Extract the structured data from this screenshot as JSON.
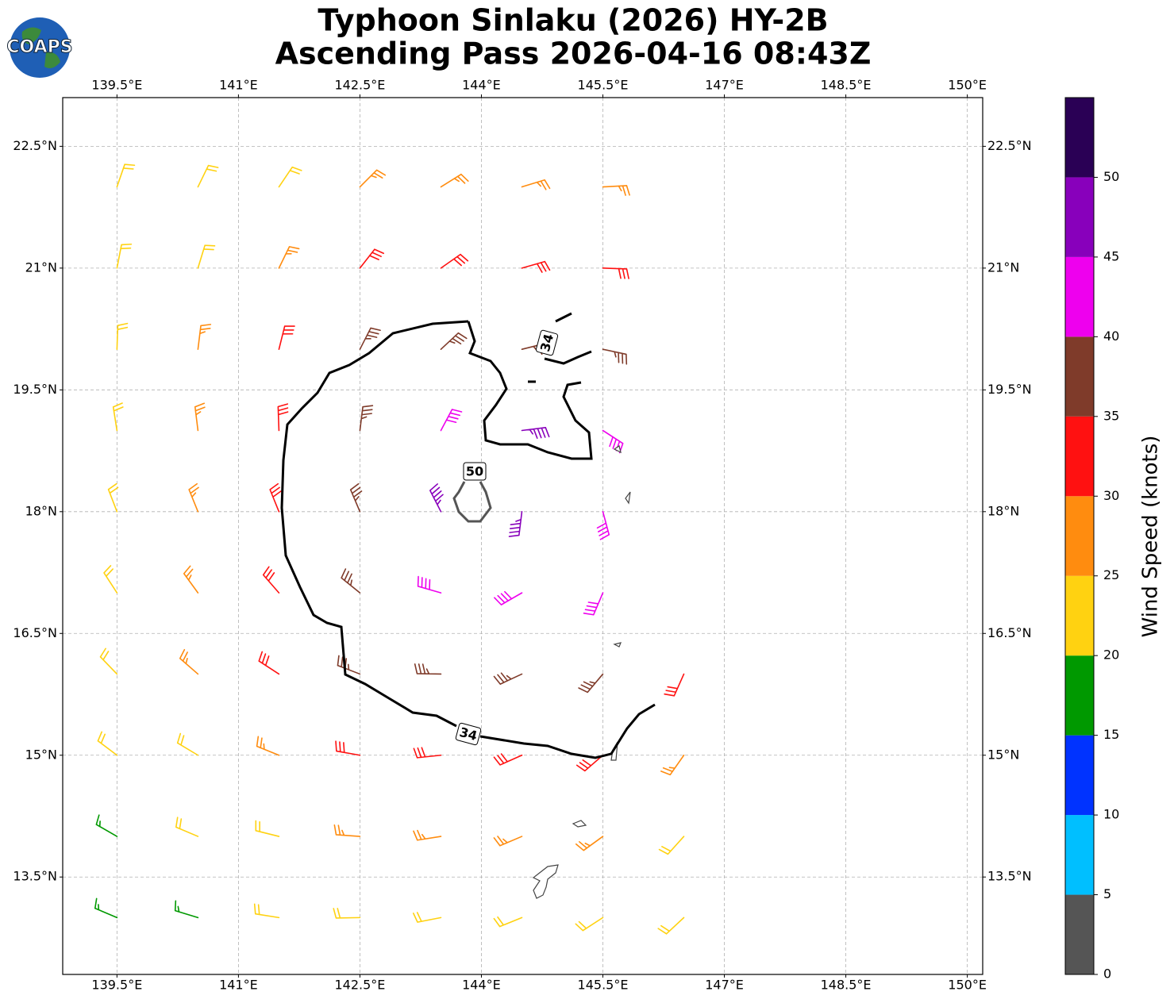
{
  "chart_data": {
    "type": "barbs",
    "title": "Typhoon Sinlaku (2026) HY-2B",
    "subtitle": "Ascending Pass 2026-04-16 08:43Z",
    "logo": "COAPS",
    "xlim": [
      138.83,
      150.19
    ],
    "ylim": [
      12.3,
      23.1
    ],
    "grid": true,
    "xticks": [
      {
        "value": 139.5,
        "label": "139.5°E"
      },
      {
        "value": 141,
        "label": "141°E"
      },
      {
        "value": 142.5,
        "label": "142.5°E"
      },
      {
        "value": 144,
        "label": "144°E"
      },
      {
        "value": 145.5,
        "label": "145.5°E"
      },
      {
        "value": 147,
        "label": "147°E"
      },
      {
        "value": 148.5,
        "label": "148.5°E"
      },
      {
        "value": 150,
        "label": "150°E"
      }
    ],
    "yticks": [
      {
        "value": 13.5,
        "label": "13.5°N"
      },
      {
        "value": 15,
        "label": "15°N"
      },
      {
        "value": 16.5,
        "label": "16.5°N"
      },
      {
        "value": 18,
        "label": "18°N"
      },
      {
        "value": 19.5,
        "label": "19.5°N"
      },
      {
        "value": 21,
        "label": "21°N"
      },
      {
        "value": 22.5,
        "label": "22.5°N"
      }
    ],
    "barbs": {
      "lon": [
        139.5,
        140.5,
        141.5,
        142.5,
        143.5,
        144.5,
        145.5,
        146.5,
        139.5,
        140.5,
        141.5,
        142.5,
        143.5,
        144.5,
        145.5,
        146.5,
        139.5,
        140.5,
        141.5,
        142.5,
        143.5,
        144.5,
        145.5,
        146.5,
        139.5,
        140.5,
        141.5,
        142.5,
        143.5,
        144.5,
        145.5,
        146.5,
        139.5,
        140.5,
        141.5,
        142.5,
        143.5,
        144.5,
        145.5,
        139.5,
        140.5,
        141.5,
        142.5,
        143.5,
        144.5,
        145.5,
        139.5,
        140.5,
        141.5,
        142.5,
        143.5,
        144.5,
        145.5,
        139.5,
        140.5,
        141.5,
        142.5,
        143.5,
        144.5,
        145.5,
        139.5,
        140.5,
        141.5,
        142.5,
        143.5,
        144.5,
        145.5,
        139.5,
        140.5,
        141.5,
        142.5,
        143.5,
        144.5,
        145.5
      ],
      "lat": [
        13,
        13,
        13,
        13,
        13,
        13,
        13,
        13,
        14,
        14,
        14,
        14,
        14,
        14,
        14,
        14,
        15,
        15,
        15,
        15,
        15,
        15,
        15,
        15,
        16,
        16,
        16,
        16,
        16,
        16,
        16,
        16,
        17,
        17,
        17,
        17,
        17,
        17,
        17,
        18,
        18,
        18,
        18,
        18,
        18,
        18,
        19,
        19,
        19,
        19,
        19,
        19,
        19,
        20,
        20,
        20,
        20,
        20,
        20,
        20,
        21,
        21,
        21,
        21,
        21,
        21,
        21,
        22,
        22,
        22,
        22,
        22,
        22,
        22
      ],
      "speed": [
        15,
        15,
        20,
        20,
        20,
        20,
        20,
        20,
        15,
        20,
        20,
        25,
        25,
        25,
        25,
        20,
        20,
        20,
        25,
        30,
        30,
        30,
        30,
        25,
        20,
        25,
        30,
        35,
        35,
        35,
        35,
        30,
        20,
        25,
        30,
        35,
        40,
        40,
        40,
        20,
        25,
        30,
        35,
        45,
        45,
        40,
        20,
        25,
        30,
        35,
        40,
        45,
        40,
        20,
        25,
        30,
        35,
        35,
        35,
        35,
        20,
        20,
        25,
        30,
        30,
        30,
        30,
        20,
        20,
        20,
        25,
        25,
        25,
        25
      ],
      "direction": [
        293,
        287,
        279,
        269,
        259,
        248,
        237,
        227,
        300,
        293,
        284,
        274,
        261,
        247,
        234,
        222,
        307,
        301,
        292,
        280,
        264,
        246,
        229,
        215,
        316,
        311,
        303,
        291,
        271,
        245,
        220,
        204,
        327,
        324,
        319,
        309,
        286,
        240,
        203,
        339,
        338,
        338,
        337,
        333,
        187,
        165,
        351,
        353,
        358,
        7,
        28,
        83,
        123,
        2,
        7,
        14,
        27,
        47,
        76,
        102,
        11,
        17,
        26,
        38,
        55,
        74,
        92,
        19,
        26,
        34,
        45,
        58,
        73,
        87
      ]
    },
    "contours": [
      {
        "level": 34
      },
      {
        "level": 50
      }
    ],
    "colorbar": {
      "label": "Wind Speed (knots)",
      "bounds": [
        0,
        5,
        10,
        15,
        20,
        25,
        30,
        35,
        40,
        45,
        50,
        55
      ],
      "colors": [
        "#555555",
        "#00bfff",
        "#0033ff",
        "#009900",
        "#ffd211",
        "#ff8c0f",
        "#ff1111",
        "#7f3b2a",
        "#ee00ee",
        "#8800bb",
        "#2a0055"
      ],
      "ticks": [
        0,
        5,
        10,
        15,
        20,
        25,
        30,
        35,
        40,
        45,
        50
      ]
    }
  }
}
